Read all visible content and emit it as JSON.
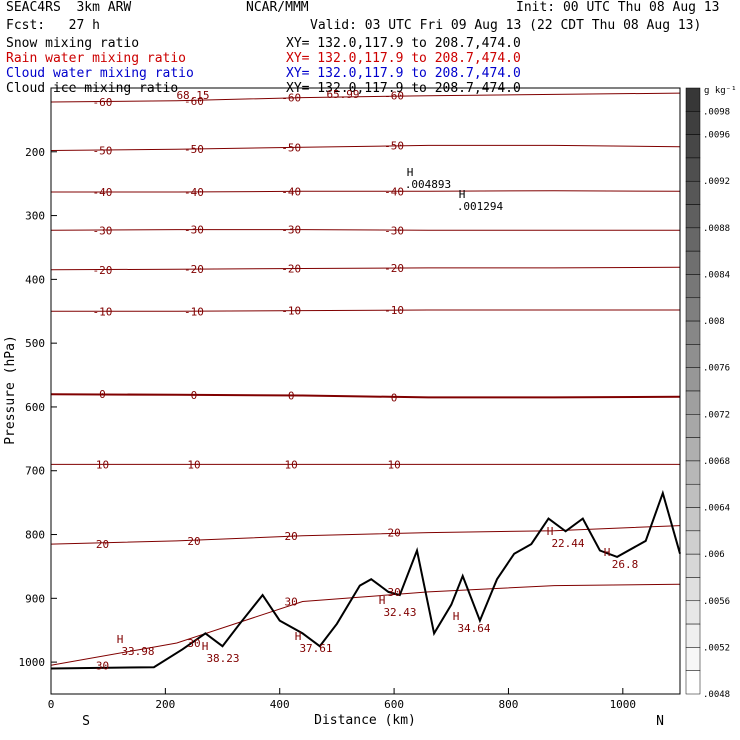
{
  "header": {
    "model": "SEAC4RS  3km ARW",
    "center": "NCAR/MMM",
    "init": "Init: 00 UTC Thu 08 Aug 13",
    "fcst": "Fcst:   27 h",
    "valid": "Valid: 03 UTC Fri 09 Aug 13 (22 CDT Thu 08 Aug 13)"
  },
  "fields": [
    {
      "name": "Snow mixing ratio",
      "xy": "XY= 132.0,117.9 to 208.7,474.0",
      "color": "#000000"
    },
    {
      "name": "Rain water mixing ratio",
      "xy": "XY= 132.0,117.9 to 208.7,474.0",
      "color": "#cc0000"
    },
    {
      "name": "Cloud water mixing ratio",
      "xy": "XY= 132.0,117.9 to 208.7,474.0",
      "color": "#0000cc"
    },
    {
      "name": "Cloud ice mixing ratio",
      "xy": "XY= 132.0,117.9 to 208.7,474.0",
      "color": "#000000"
    }
  ],
  "chart_data": {
    "type": "line",
    "title": "",
    "xlabel": "Distance (km)",
    "ylabel": "Pressure (hPa)",
    "xlim": [
      0,
      1100
    ],
    "ylim": [
      1050,
      100
    ],
    "x_ticks": [
      0,
      200,
      400,
      600,
      800,
      1000
    ],
    "y_ticks": [
      200,
      300,
      400,
      500,
      600,
      700,
      800,
      900,
      1000
    ],
    "x_endpoints": {
      "left": "S",
      "right": "N"
    },
    "contour_color": "#800000",
    "isotherms": [
      {
        "value": -60,
        "p": [
          122,
          120,
          115,
          112,
          110,
          108
        ]
      },
      {
        "value": -50,
        "p": [
          198,
          196,
          193,
          190,
          190,
          192
        ]
      },
      {
        "value": -40,
        "p": [
          263,
          263,
          262,
          262,
          261,
          262
        ]
      },
      {
        "value": -30,
        "p": [
          323,
          322,
          322,
          323,
          323,
          323
        ]
      },
      {
        "value": -20,
        "p": [
          385,
          384,
          383,
          382,
          382,
          381
        ]
      },
      {
        "value": -10,
        "p": [
          450,
          450,
          449,
          448,
          448,
          448
        ]
      },
      {
        "value": 0,
        "p": [
          580,
          581,
          582,
          585,
          585,
          584
        ]
      },
      {
        "value": 10,
        "p": [
          690,
          690,
          690,
          690,
          690,
          690
        ]
      },
      {
        "value": 20,
        "p": [
          815,
          810,
          802,
          797,
          794,
          786
        ]
      },
      {
        "value": 30,
        "p": [
          1005,
          970,
          905,
          890,
          880,
          878
        ]
      }
    ],
    "labels": {
      "top_label_1": "68.15",
      "top_label_2": "65.99",
      "h_markers": [
        {
          "text": "H",
          "value": ".004893"
        },
        {
          "text": "H",
          "value": ".001294"
        },
        {
          "text": "H",
          "value": "33.98"
        },
        {
          "text": "H",
          "value": "38.23"
        },
        {
          "text": "H",
          "value": "37.61"
        },
        {
          "text": "H",
          "value": "32.43"
        },
        {
          "text": "H",
          "value": "34.64"
        },
        {
          "text": "H",
          "value": "22.44"
        },
        {
          "text": "H",
          "value": "26.8"
        }
      ]
    },
    "terrain": {
      "distance_km": [
        0,
        180,
        230,
        270,
        300,
        330,
        370,
        400,
        440,
        470,
        500,
        540,
        560,
        590,
        610,
        640,
        670,
        700,
        720,
        750,
        780,
        810,
        840,
        870,
        900,
        930,
        960,
        990,
        1040,
        1070,
        1100
      ],
      "pressure_hpa": [
        1010,
        1008,
        980,
        955,
        975,
        940,
        895,
        935,
        955,
        975,
        940,
        880,
        870,
        890,
        895,
        825,
        955,
        910,
        865,
        935,
        870,
        830,
        815,
        775,
        795,
        775,
        825,
        835,
        810,
        735,
        830
      ]
    },
    "colorbar": {
      "unit": "g kg⁻¹",
      "ticks": [
        ".0098",
        ".0096",
        ".0094",
        ".0092",
        ".009",
        ".0088",
        ".0086",
        ".0084",
        ".0082",
        ".008",
        ".0078",
        ".0076",
        ".0074",
        ".0072",
        ".007",
        ".0068",
        ".0066",
        ".0064",
        ".0062",
        ".006",
        ".0058",
        ".0056",
        ".0054",
        ".0052",
        ".005",
        ".0048"
      ],
      "labeled_ticks": [
        ".0098",
        ".0096",
        ".0092",
        ".0088",
        ".0084",
        ".008",
        ".0076",
        ".0072",
        ".0068",
        ".0064",
        ".006",
        ".0056",
        ".0052",
        ".0048"
      ]
    }
  }
}
